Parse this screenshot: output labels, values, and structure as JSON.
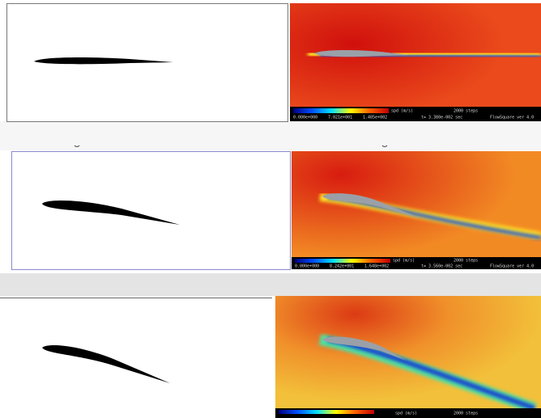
{
  "panels": [
    {
      "unit": "spd (m/s)",
      "ticks": [
        "0.000e+000",
        "7.021e+001",
        "1.405e+002"
      ],
      "steps": "2000 steps",
      "time": "t= 3.380e-002 sec",
      "version": "FlowSquare ver 4.0"
    },
    {
      "unit": "spd (m/s)",
      "ticks": [
        "0.000e+000",
        "8.242e+001",
        "1.648e+002"
      ],
      "steps": "2000 steps",
      "time": "t= 3.560e-002 sec",
      "version": "FlowSquare ver 4.0"
    },
    {
      "unit": "spd (m/s)",
      "steps": "2000 steps"
    }
  ]
}
